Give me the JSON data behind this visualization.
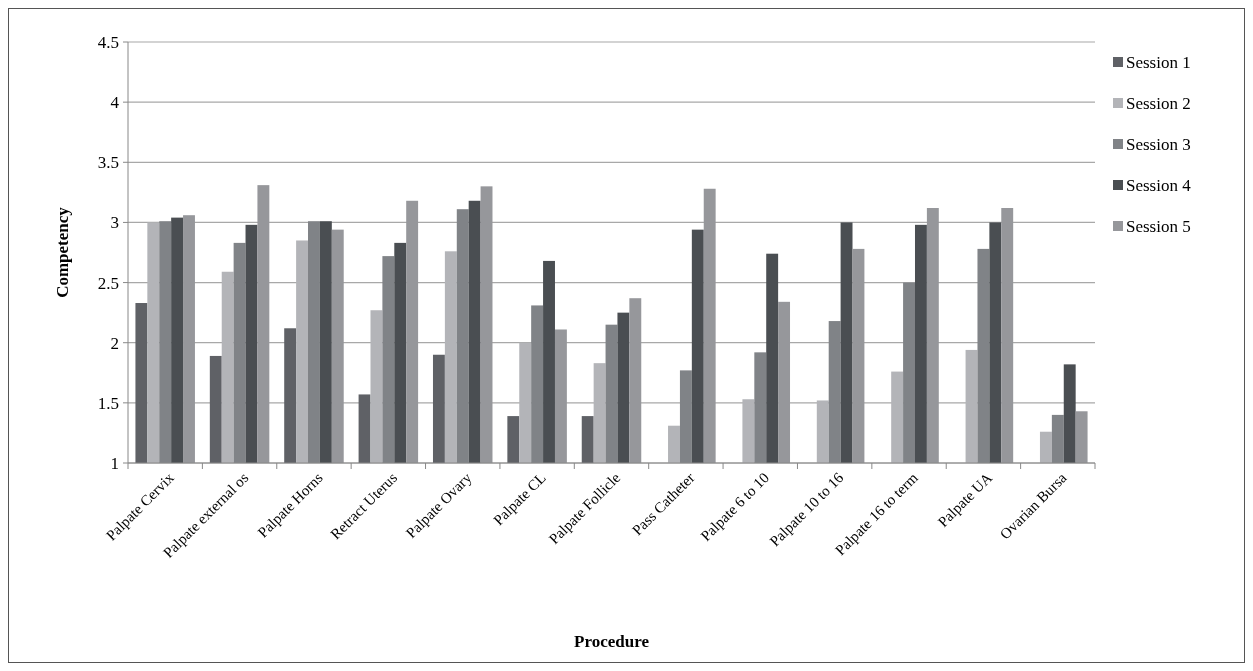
{
  "chart_data": {
    "type": "bar",
    "xlabel": "Procedure",
    "ylabel": "Competency",
    "categories": [
      "Palpate Cervix",
      "Palpate external os",
      "Palpate Horns",
      "Retract Uterus",
      "Palpate Ovary",
      "Palpate CL",
      "Palpate Follicle",
      "Pass Catheter",
      "Palpate 6 to 10",
      "Palpate 10 to 16",
      "Palpate 16 to term",
      "Palpate UA",
      "Ovarian Bursa"
    ],
    "series": [
      {
        "name": "Session 1",
        "color": "#5f6166",
        "values": [
          2.33,
          1.89,
          2.12,
          1.57,
          1.9,
          1.39,
          1.39,
          null,
          null,
          null,
          null,
          null,
          null
        ]
      },
      {
        "name": "Session 2",
        "color": "#b3b4b8",
        "values": [
          3.0,
          2.59,
          2.85,
          2.27,
          2.76,
          2.0,
          1.83,
          1.31,
          1.53,
          1.52,
          1.76,
          1.94,
          1.26
        ]
      },
      {
        "name": "Session 3",
        "color": "#808387",
        "values": [
          3.01,
          2.83,
          3.01,
          2.72,
          3.11,
          2.31,
          2.15,
          1.77,
          1.92,
          2.18,
          2.5,
          2.78,
          1.4
        ]
      },
      {
        "name": "Session 4",
        "color": "#4a4e52",
        "values": [
          3.04,
          2.98,
          3.01,
          2.83,
          3.18,
          2.68,
          2.25,
          2.94,
          2.74,
          3.0,
          2.98,
          3.0,
          1.82
        ]
      },
      {
        "name": "Session 5",
        "color": "#96979b",
        "values": [
          3.06,
          3.31,
          2.94,
          3.18,
          3.3,
          2.11,
          2.37,
          3.28,
          2.34,
          2.78,
          3.12,
          3.12,
          1.43
        ]
      }
    ],
    "ylim": [
      1,
      4.5
    ],
    "yticks": [
      1,
      1.5,
      2,
      2.5,
      3,
      3.5,
      4,
      4.5
    ],
    "grid": "y",
    "legend": "right"
  }
}
